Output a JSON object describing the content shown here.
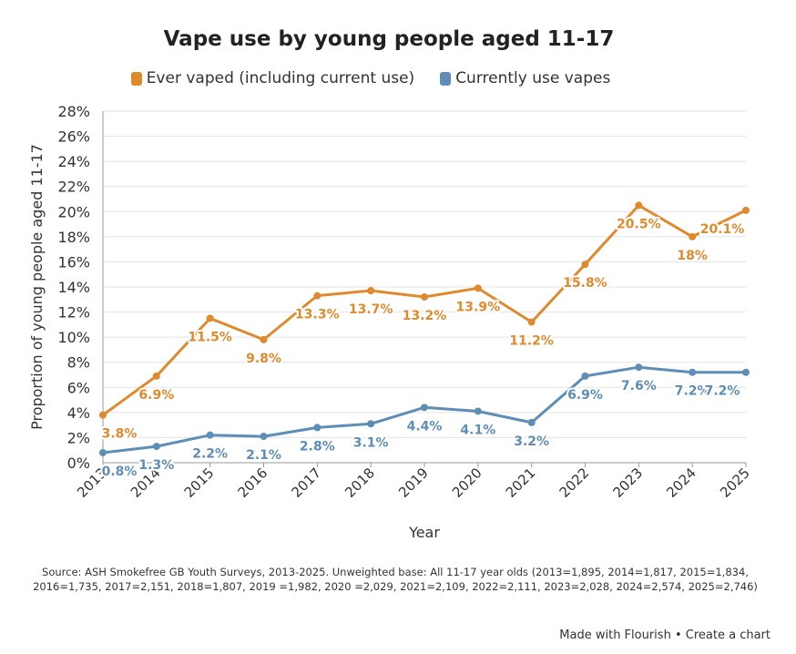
{
  "chart_data": {
    "type": "line",
    "title": "Vape use by young people aged 11-17",
    "xlabel": "Year",
    "ylabel": "Proportion of young people aged 11-17",
    "x": [
      "2013",
      "2014",
      "2015",
      "2016",
      "2017",
      "2018",
      "2019",
      "2020",
      "2021",
      "2022",
      "2023",
      "2024",
      "2025"
    ],
    "ylim": [
      0,
      28
    ],
    "yticks": [
      "0%",
      "2%",
      "4%",
      "6%",
      "8%",
      "10%",
      "12%",
      "14%",
      "16%",
      "18%",
      "20%",
      "22%",
      "24%",
      "26%",
      "28%"
    ],
    "grid": true,
    "legend_position": "top",
    "series": [
      {
        "name": "Ever vaped (including current use)",
        "color": "#e08a2e",
        "values": [
          3.8,
          6.9,
          11.5,
          9.8,
          13.3,
          13.7,
          13.2,
          13.9,
          11.2,
          15.8,
          20.5,
          18,
          20.1
        ],
        "labels": [
          "3.8%",
          "6.9%",
          "11.5%",
          "9.8%",
          "13.3%",
          "13.7%",
          "13.2%",
          "13.9%",
          "11.2%",
          "15.8%",
          "20.5%",
          "18%",
          "20.1%"
        ]
      },
      {
        "name": "Currently use vapes",
        "color": "#5e8db5",
        "values": [
          0.8,
          1.3,
          2.2,
          2.1,
          2.8,
          3.1,
          4.4,
          4.1,
          3.2,
          6.9,
          7.6,
          7.2,
          7.2
        ],
        "labels": [
          "0.8%",
          "1.3%",
          "2.2%",
          "2.1%",
          "2.8%",
          "3.1%",
          "4.4%",
          "4.1%",
          "3.2%",
          "6.9%",
          "7.6%",
          "7.2%",
          "7.2%"
        ]
      }
    ]
  },
  "source": {
    "line1": "Source: ASH Smokefree GB Youth Surveys, 2013-2025. Unweighted base: All 11-17 year olds (2013=1,895, 2014=1,817, 2015=1,834,",
    "line2": "2016=1,735, 2017=2,151, 2018=1,807, 2019 =1,982, 2020 =2,029, 2021=2,109, 2022=2,111, 2023=2,028, 2024=2,574, 2025=2,746)"
  },
  "footer": {
    "made_with": "Made with Flourish",
    "separator": "•",
    "create": "Create a chart"
  }
}
